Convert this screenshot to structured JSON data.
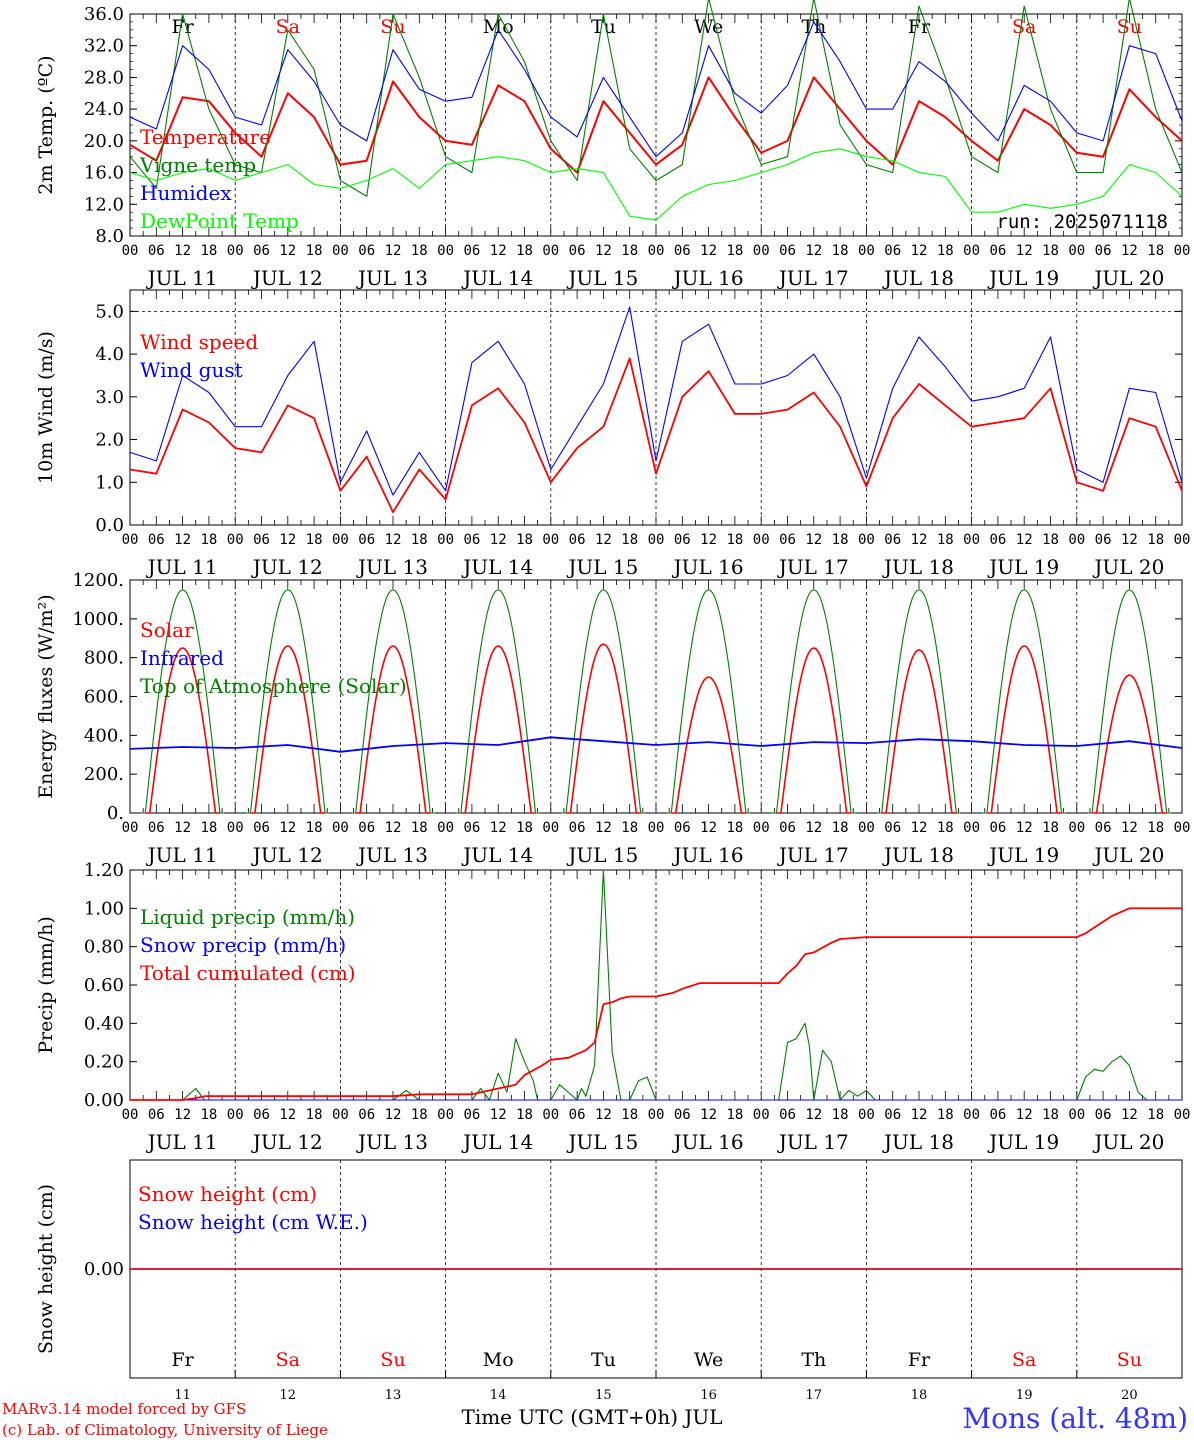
{
  "footer": {
    "credit1": "MARv3.14 model forced by GFS",
    "credit2": "(c) Lab. of Climatology, University of Liege",
    "xlabel": "Time UTC (GMT+0h) JUL",
    "station": "Mons (alt. 48m)"
  },
  "common": {
    "hour_ticks": [
      "00",
      "06",
      "12",
      "18"
    ],
    "dates": [
      "JUL 11",
      "JUL 12",
      "JUL 13",
      "JUL 14",
      "JUL 15",
      "JUL 16",
      "JUL 17",
      "JUL 18",
      "JUL 19",
      "JUL 20"
    ],
    "day_names": [
      "Fr",
      "Sa",
      "Su",
      "Mo",
      "Tu",
      "We",
      "Th",
      "Fr",
      "Sa",
      "Su"
    ],
    "day_colors": [
      "#000000",
      "#ff0000",
      "#ff0000",
      "#000000",
      "#000000",
      "#000000",
      "#000000",
      "#000000",
      "#ff0000",
      "#ff0000"
    ],
    "day_numbers": [
      "11",
      "12",
      "13",
      "14",
      "15",
      "16",
      "17",
      "18",
      "19",
      "20"
    ]
  },
  "chart_data": [
    {
      "type": "line",
      "ylabel": "2m Temp. (ºC)",
      "ylim": [
        8,
        36
      ],
      "yticks": [
        "8.0",
        "12.0",
        "16.0",
        "20.0",
        "24.0",
        "28.0",
        "32.0",
        "36.0"
      ],
      "annotation": "run: 2025071118",
      "series": [
        {
          "name": "Temperature",
          "color": "#ff0000",
          "x": [
            0,
            6,
            12,
            18,
            24,
            30,
            36,
            42,
            48,
            54,
            60,
            66,
            72,
            78,
            84,
            90,
            96,
            102,
            108,
            114,
            120,
            126,
            132,
            138,
            144,
            150,
            156,
            162,
            168,
            174,
            180,
            186,
            192,
            198,
            204,
            210,
            216,
            222,
            228,
            234,
            240
          ],
          "values": [
            19.5,
            17.5,
            25.5,
            25,
            21,
            18,
            26,
            23,
            17,
            17.5,
            27.5,
            23,
            20,
            19.5,
            27,
            25,
            19,
            16,
            25,
            21,
            17,
            19.5,
            28,
            23,
            18.5,
            20,
            28,
            24,
            20,
            17,
            25,
            23,
            20,
            17.5,
            24,
            22,
            18.5,
            18,
            26.5,
            23,
            20
          ]
        },
        {
          "name": "Vigne temp",
          "color": "#008000",
          "x": [
            0,
            6,
            12,
            18,
            24,
            30,
            36,
            42,
            48,
            54,
            60,
            66,
            72,
            78,
            84,
            90,
            96,
            102,
            108,
            114,
            120,
            126,
            132,
            138,
            144,
            150,
            156,
            162,
            168,
            174,
            180,
            186,
            192,
            198,
            204,
            210,
            216,
            222,
            228,
            234,
            240
          ],
          "values": [
            18,
            14,
            36,
            24,
            17,
            16,
            34,
            29,
            15,
            13,
            36,
            28,
            18,
            16,
            36,
            30,
            20,
            15,
            36,
            19,
            15,
            17,
            38,
            25,
            17,
            18,
            38,
            22,
            17,
            16,
            37,
            28,
            18,
            16,
            37,
            24,
            16,
            16,
            38,
            24,
            16
          ]
        },
        {
          "name": "Humidex",
          "color": "#0000ff",
          "x": [
            0,
            6,
            12,
            18,
            24,
            30,
            36,
            42,
            48,
            54,
            60,
            66,
            72,
            78,
            84,
            90,
            96,
            102,
            108,
            114,
            120,
            126,
            132,
            138,
            144,
            150,
            156,
            162,
            168,
            174,
            180,
            186,
            192,
            198,
            204,
            210,
            216,
            222,
            228,
            234,
            240
          ],
          "values": [
            23,
            21.5,
            32,
            29,
            23,
            22,
            31.5,
            27.5,
            22,
            20,
            31.5,
            26.5,
            25,
            25.5,
            34,
            29,
            23,
            20.5,
            28,
            23,
            18,
            21,
            32,
            26,
            23.5,
            27,
            35,
            30,
            24,
            24,
            30,
            27.5,
            23.5,
            20,
            27,
            25,
            21,
            20,
            32,
            31,
            22.5
          ]
        },
        {
          "name": "DewPoint Temp",
          "color": "#00ff00",
          "x": [
            0,
            6,
            12,
            18,
            24,
            30,
            36,
            42,
            48,
            54,
            60,
            66,
            72,
            78,
            84,
            90,
            96,
            102,
            108,
            114,
            120,
            126,
            132,
            138,
            144,
            150,
            156,
            162,
            168,
            174,
            180,
            186,
            192,
            198,
            204,
            210,
            216,
            222,
            228,
            234,
            240
          ],
          "values": [
            16,
            15,
            16,
            16.5,
            15,
            16,
            17,
            14.5,
            14,
            15,
            16.5,
            14,
            17,
            17.5,
            18,
            17.5,
            16,
            16.5,
            16,
            10.5,
            10,
            13,
            14.5,
            15,
            16,
            17,
            18.5,
            19,
            18,
            17.5,
            16,
            15.5,
            11,
            11,
            12,
            11.5,
            12,
            13,
            17,
            16,
            13
          ]
        }
      ]
    },
    {
      "type": "line",
      "ylabel": "10m Wind (m/s)",
      "ylim": [
        0,
        5.5
      ],
      "yticks": [
        "0.0",
        "1.0",
        "2.0",
        "3.0",
        "4.0",
        "5.0"
      ],
      "series": [
        {
          "name": "Wind speed",
          "color": "#ff0000",
          "x": [
            0,
            6,
            12,
            18,
            24,
            30,
            36,
            42,
            48,
            54,
            60,
            66,
            72,
            78,
            84,
            90,
            96,
            102,
            108,
            114,
            120,
            126,
            132,
            138,
            144,
            150,
            156,
            162,
            168,
            174,
            180,
            186,
            192,
            198,
            204,
            210,
            216,
            222,
            228,
            234,
            240
          ],
          "values": [
            1.3,
            1.2,
            2.7,
            2.4,
            1.8,
            1.7,
            2.8,
            2.5,
            0.8,
            1.6,
            0.3,
            1.3,
            0.6,
            2.8,
            3.2,
            2.4,
            1.0,
            1.8,
            2.3,
            3.9,
            1.2,
            3.0,
            3.6,
            2.6,
            2.6,
            2.7,
            3.1,
            2.3,
            0.9,
            2.5,
            3.3,
            2.8,
            2.3,
            2.4,
            2.5,
            3.2,
            1.0,
            0.8,
            2.5,
            2.3,
            0.8
          ]
        },
        {
          "name": "Wind gust",
          "color": "#0000ff",
          "x": [
            0,
            6,
            12,
            18,
            24,
            30,
            36,
            42,
            48,
            54,
            60,
            66,
            72,
            78,
            84,
            90,
            96,
            102,
            108,
            114,
            120,
            126,
            132,
            138,
            144,
            150,
            156,
            162,
            168,
            174,
            180,
            186,
            192,
            198,
            204,
            210,
            216,
            222,
            228,
            234,
            240
          ],
          "values": [
            1.7,
            1.5,
            3.5,
            3.1,
            2.3,
            2.3,
            3.5,
            4.3,
            1.0,
            2.2,
            0.7,
            1.7,
            0.8,
            3.8,
            4.3,
            3.3,
            1.3,
            2.3,
            3.3,
            5.1,
            1.5,
            4.3,
            4.7,
            3.3,
            3.3,
            3.5,
            4.0,
            3.0,
            1.1,
            3.2,
            4.4,
            3.7,
            2.9,
            3.0,
            3.2,
            4.4,
            1.3,
            1.0,
            3.2,
            3.1,
            1.0
          ]
        }
      ]
    },
    {
      "type": "line",
      "ylabel": "Energy fluxes (W/m²)",
      "ylim": [
        0,
        1200
      ],
      "yticks": [
        "0.",
        "200.",
        "400.",
        "600.",
        "800.",
        "1000.",
        "1200."
      ],
      "series": [
        {
          "name": "Solar",
          "color": "#ff0000",
          "peaks": [
            850,
            860,
            860,
            860,
            870,
            700,
            850,
            840,
            860,
            710
          ]
        },
        {
          "name": "Infrared",
          "color": "#0000ff",
          "x": [
            0,
            12,
            24,
            36,
            48,
            60,
            72,
            84,
            96,
            108,
            120,
            132,
            144,
            156,
            168,
            180,
            192,
            204,
            216,
            228,
            240
          ],
          "values": [
            330,
            340,
            335,
            350,
            315,
            345,
            360,
            350,
            390,
            370,
            350,
            365,
            345,
            365,
            360,
            380,
            370,
            350,
            345,
            370,
            335
          ]
        },
        {
          "name": "Top of Atmosphere (Solar)",
          "color": "#008000",
          "peaks": [
            1150,
            1150,
            1150,
            1150,
            1150,
            1150,
            1150,
            1150,
            1150,
            1150
          ]
        }
      ]
    },
    {
      "type": "line",
      "ylabel": "Precip (mm/h)",
      "ylim": [
        0,
        1.2
      ],
      "yticks": [
        "0.00",
        "0.20",
        "0.40",
        "0.60",
        "0.80",
        "1.00",
        "1.20"
      ],
      "series": [
        {
          "name": "Liquid precip (mm/h)",
          "color": "#008000",
          "x": [
            0,
            12,
            15,
            17,
            60,
            63,
            66,
            78,
            80,
            82,
            84,
            86,
            88,
            90,
            92,
            93,
            96,
            98,
            102,
            103,
            104,
            106,
            108,
            110,
            112,
            114,
            116,
            118,
            120,
            122,
            124,
            126,
            128,
            130,
            132,
            148,
            150,
            152,
            154,
            155,
            156,
            158,
            160,
            162,
            164,
            166,
            168,
            170,
            216,
            218,
            220,
            222,
            224,
            226,
            228,
            230,
            232,
            240
          ],
          "values": [
            0,
            0,
            0.06,
            0,
            0,
            0.05,
            0,
            0,
            0.06,
            0,
            0.14,
            0.04,
            0.32,
            0.2,
            0.1,
            0,
            0,
            0.08,
            0,
            0.06,
            0.02,
            0.18,
            1.2,
            0.25,
            0,
            0,
            0.1,
            0.12,
            0,
            0,
            0,
            0,
            0,
            0,
            0,
            0,
            0.3,
            0.32,
            0.4,
            0.28,
            0,
            0.26,
            0.2,
            0,
            0.05,
            0.02,
            0.05,
            0,
            0,
            0.12,
            0.16,
            0.15,
            0.2,
            0.23,
            0.18,
            0.04,
            0,
            0
          ]
        },
        {
          "name": "Snow precip (mm/h)",
          "color": "#0000ff",
          "x": [
            0,
            240
          ],
          "values": [
            0,
            0
          ]
        },
        {
          "name": "Total cumulated (cm)",
          "color": "#ff0000",
          "x": [
            0,
            12,
            15,
            17,
            60,
            66,
            78,
            84,
            88,
            90,
            94,
            96,
            100,
            104,
            106,
            108,
            110,
            112,
            114,
            118,
            120,
            122,
            124,
            126,
            130,
            132,
            148,
            150,
            152,
            154,
            156,
            160,
            162,
            168,
            200,
            212,
            216,
            218,
            220,
            222,
            224,
            226,
            228,
            240
          ],
          "values": [
            0,
            0,
            0.01,
            0.02,
            0.02,
            0.03,
            0.03,
            0.06,
            0.08,
            0.13,
            0.18,
            0.21,
            0.22,
            0.26,
            0.3,
            0.5,
            0.51,
            0.53,
            0.54,
            0.54,
            0.54,
            0.55,
            0.56,
            0.58,
            0.61,
            0.61,
            0.61,
            0.66,
            0.7,
            0.76,
            0.77,
            0.82,
            0.84,
            0.85,
            0.85,
            0.85,
            0.85,
            0.87,
            0.9,
            0.93,
            0.96,
            0.98,
            1.0,
            1.0
          ]
        }
      ]
    },
    {
      "type": "line",
      "ylabel": "Snow height (cm)",
      "yticks": [
        "0.00"
      ],
      "series": [
        {
          "name": "Snow height (cm)",
          "color": "#ff0000",
          "x": [
            0,
            240
          ],
          "values": [
            0,
            0
          ]
        },
        {
          "name": "Snow height (cm W.E.)",
          "color": "#0000ff",
          "x": [
            0,
            240
          ],
          "values": [
            0,
            0
          ]
        }
      ]
    }
  ]
}
